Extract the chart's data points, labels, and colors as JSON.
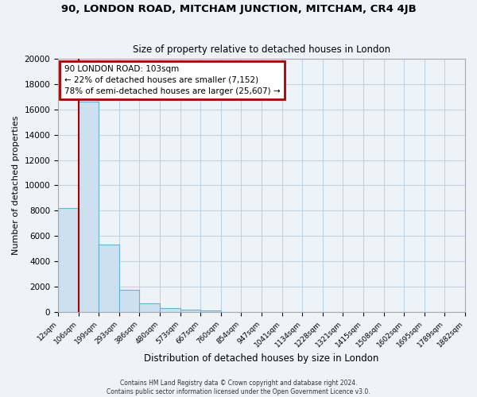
{
  "title": "90, LONDON ROAD, MITCHAM JUNCTION, MITCHAM, CR4 4JB",
  "subtitle": "Size of property relative to detached houses in London",
  "xlabel": "Distribution of detached houses by size in London",
  "ylabel": "Number of detached properties",
  "bar_values": [
    8200,
    16600,
    5300,
    1750,
    700,
    300,
    200,
    100,
    0,
    0,
    0,
    0,
    0,
    0,
    0,
    0,
    0,
    0,
    0,
    0
  ],
  "bin_labels": [
    "12sqm",
    "106sqm",
    "199sqm",
    "293sqm",
    "386sqm",
    "480sqm",
    "573sqm",
    "667sqm",
    "760sqm",
    "854sqm",
    "947sqm",
    "1041sqm",
    "1134sqm",
    "1228sqm",
    "1321sqm",
    "1415sqm",
    "1508sqm",
    "1602sqm",
    "1695sqm",
    "1789sqm",
    "1882sqm"
  ],
  "bar_color": "#cce0f0",
  "bar_edge_color": "#6aafd6",
  "ylim": [
    0,
    20000
  ],
  "yticks": [
    0,
    2000,
    4000,
    6000,
    8000,
    10000,
    12000,
    14000,
    16000,
    18000,
    20000
  ],
  "vline_color": "#aa0000",
  "annotation_title": "90 LONDON ROAD: 103sqm",
  "annotation_line1": "← 22% of detached houses are smaller (7,152)",
  "annotation_line2": "78% of semi-detached houses are larger (25,607) →",
  "annotation_box_color": "#ffffff",
  "annotation_box_edge": "#aa0000",
  "footer1": "Contains HM Land Registry data © Crown copyright and database right 2024.",
  "footer2": "Contains public sector information licensed under the Open Government Licence v3.0.",
  "bg_color": "#eef3f8",
  "plot_bg_color": "#eef3f8",
  "grid_color": "#c0d4e8"
}
